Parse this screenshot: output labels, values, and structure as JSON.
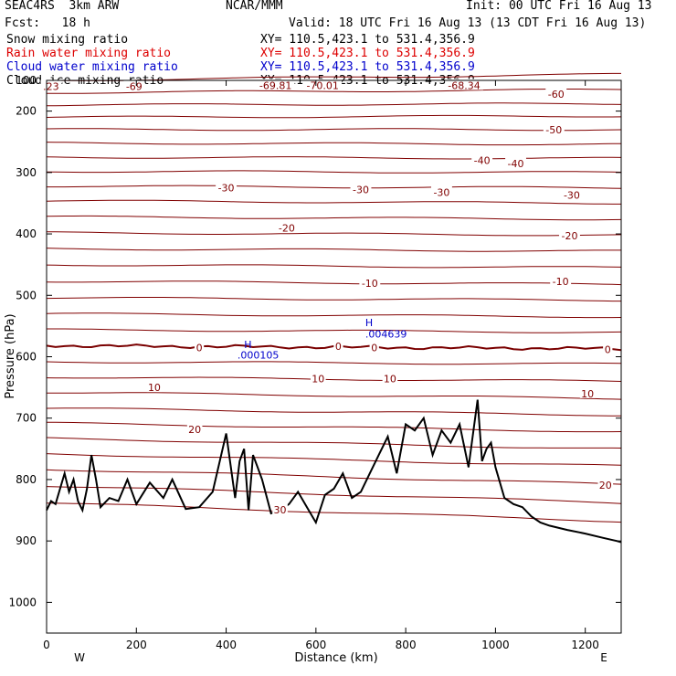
{
  "header": {
    "model": "SEAC4RS  3km ARW",
    "center": "NCAR/MMM",
    "init": "Init: 00 UTC Fri 16 Aug 13",
    "fcst": "Fcst:   18 h",
    "valid": "Valid: 18 UTC Fri 16 Aug 13 (13 CDT Fri 16 Aug 13)",
    "fields": [
      {
        "name": "Snow mixing ratio",
        "xy": "XY= 110.5,423.1 to 531.4,356.9",
        "color": "#000000"
      },
      {
        "name": "Rain water mixing ratio",
        "xy": "XY= 110.5,423.1 to 531.4,356.9",
        "color": "#dd0000"
      },
      {
        "name": "Cloud water mixing ratio",
        "xy": "XY= 110.5,423.1 to 531.4,356.9",
        "color": "#0000cc"
      },
      {
        "name": "Cloud ice mixing ratio",
        "xy": "XY= 110.5,423.1 to 531.4,356.9",
        "color": "#000000"
      }
    ]
  },
  "chart_data": {
    "type": "line",
    "xlabel": "Distance (km)",
    "ylabel": "Pressure (hPa)",
    "xlim": [
      0,
      1280
    ],
    "ylim": [
      1050,
      150
    ],
    "xticks": [
      0,
      200,
      400,
      600,
      800,
      1000,
      1200
    ],
    "yticks": [
      200,
      300,
      400,
      500,
      600,
      700,
      800,
      900,
      1000
    ],
    "y_tick_labels": [
      "200",
      "300",
      "400",
      "500",
      "600",
      "700",
      "800",
      "900",
      "1000"
    ],
    "top_y_label": "100",
    "x_end_labels": {
      "left": "W",
      "right": "E"
    },
    "colors": {
      "isotherm": "#800000",
      "freezing": "#7a0000",
      "terrain": "#000000",
      "cloud": "#0000cc"
    },
    "isotherm_labels": [
      {
        "text": ".23",
        "x": 10,
        "p": 160
      },
      {
        "text": "-69",
        "x": 195,
        "p": 160
      },
      {
        "text": "-69.81",
        "x": 510,
        "p": 158
      },
      {
        "text": "-70.01",
        "x": 615,
        "p": 158
      },
      {
        "text": "-68.34",
        "x": 930,
        "p": 158
      },
      {
        "text": "-60",
        "x": 1135,
        "p": 172
      },
      {
        "text": "-50",
        "x": 1130,
        "p": 230
      },
      {
        "text": "-40",
        "x": 970,
        "p": 280
      },
      {
        "text": "-40",
        "x": 1045,
        "p": 285
      },
      {
        "text": "-30",
        "x": 400,
        "p": 325
      },
      {
        "text": "-30",
        "x": 700,
        "p": 328
      },
      {
        "text": "-30",
        "x": 880,
        "p": 332
      },
      {
        "text": "-30",
        "x": 1170,
        "p": 337
      },
      {
        "text": "-20",
        "x": 535,
        "p": 390
      },
      {
        "text": "-20",
        "x": 1165,
        "p": 403
      },
      {
        "text": "-10",
        "x": 720,
        "p": 480
      },
      {
        "text": "-10",
        "x": 1145,
        "p": 477
      },
      {
        "text": "0",
        "x": 340,
        "p": 585
      },
      {
        "text": "0",
        "x": 650,
        "p": 583
      },
      {
        "text": "0",
        "x": 730,
        "p": 585
      },
      {
        "text": "0",
        "x": 1250,
        "p": 588
      },
      {
        "text": "10",
        "x": 240,
        "p": 650
      },
      {
        "text": "10",
        "x": 605,
        "p": 636
      },
      {
        "text": "10",
        "x": 765,
        "p": 636
      },
      {
        "text": "10",
        "x": 1205,
        "p": 660
      },
      {
        "text": "20",
        "x": 330,
        "p": 718
      },
      {
        "text": "20",
        "x": 1245,
        "p": 809
      },
      {
        "text": "30",
        "x": 520,
        "p": 849
      }
    ],
    "cloud_labels": [
      {
        "text": "H",
        "x": 710,
        "p": 550
      },
      {
        "text": ".004639",
        "x": 710,
        "p": 569
      },
      {
        "text": "H",
        "x": 440,
        "p": 586
      },
      {
        "text": ".000105",
        "x": 425,
        "p": 603
      }
    ],
    "terrain": {
      "x": [
        0,
        10,
        20,
        40,
        50,
        60,
        70,
        80,
        90,
        100,
        110,
        120,
        140,
        160,
        180,
        200,
        230,
        260,
        280,
        310,
        340,
        370,
        400,
        420,
        430,
        440,
        450,
        460,
        470,
        480,
        500,
        520,
        540,
        560,
        580,
        600,
        620,
        640,
        660,
        680,
        700,
        720,
        740,
        760,
        780,
        800,
        820,
        840,
        860,
        880,
        900,
        920,
        940,
        960,
        970,
        980,
        990,
        1000,
        1020,
        1040,
        1060,
        1080,
        1100,
        1120,
        1160,
        1200,
        1240,
        1270,
        1280
      ],
      "p": [
        850,
        835,
        840,
        790,
        820,
        800,
        835,
        850,
        815,
        760,
        800,
        845,
        830,
        835,
        800,
        840,
        805,
        830,
        800,
        848,
        845,
        820,
        725,
        830,
        770,
        750,
        850,
        760,
        780,
        800,
        855,
        850,
        840,
        820,
        845,
        870,
        825,
        815,
        790,
        830,
        820,
        790,
        760,
        730,
        790,
        710,
        720,
        700,
        760,
        720,
        740,
        710,
        780,
        670,
        770,
        750,
        740,
        780,
        830,
        840,
        845,
        860,
        870,
        875,
        882,
        888,
        895,
        900,
        902
      ]
    },
    "isotherms": [
      {
        "x": [
          0,
          1280
        ],
        "p": [
          150,
          140
        ]
      },
      {
        "x": [
          0,
          1280
        ],
        "p": [
          170,
          165
        ]
      },
      {
        "x": [
          0,
          1280
        ],
        "p": [
          190,
          188
        ]
      },
      {
        "x": [
          0,
          1280
        ],
        "p": [
          210,
          208
        ]
      },
      {
        "x": [
          0,
          1280
        ],
        "p": [
          230,
          230
        ]
      },
      {
        "x": [
          0,
          1280
        ],
        "p": [
          252,
          254
        ]
      },
      {
        "x": [
          0,
          1280
        ],
        "p": [
          275,
          277
        ]
      },
      {
        "x": [
          0,
          1280
        ],
        "p": [
          298,
          300
        ]
      },
      {
        "x": [
          0,
          1280
        ],
        "p": [
          322,
          325
        ]
      },
      {
        "x": [
          0,
          1280
        ],
        "p": [
          346,
          350
        ]
      },
      {
        "x": [
          0,
          1280
        ],
        "p": [
          372,
          376
        ]
      },
      {
        "x": [
          0,
          1280
        ],
        "p": [
          398,
          402
        ]
      },
      {
        "x": [
          0,
          1280
        ],
        "p": [
          424,
          428
        ]
      },
      {
        "x": [
          0,
          1280
        ],
        "p": [
          450,
          455
        ]
      },
      {
        "x": [
          0,
          1280
        ],
        "p": [
          477,
          482
        ]
      },
      {
        "x": [
          0,
          1280
        ],
        "p": [
          504,
          508
        ]
      },
      {
        "x": [
          0,
          1280
        ],
        "p": [
          530,
          535
        ]
      },
      {
        "x": [
          0,
          1280
        ],
        "p": [
          556,
          560
        ]
      },
      {
        "x": [
          0,
          1280
        ],
        "p": [
          582,
          587
        ],
        "freezing": true
      },
      {
        "x": [
          0,
          1280
        ],
        "p": [
          608,
          612
        ]
      },
      {
        "x": [
          0,
          1280
        ],
        "p": [
          633,
          640
        ]
      },
      {
        "x": [
          0,
          1280
        ],
        "p": [
          658,
          668
        ]
      },
      {
        "x": [
          0,
          1280
        ],
        "p": [
          684,
          695
        ]
      },
      {
        "x": [
          0,
          1280
        ],
        "p": [
          708,
          722
        ]
      },
      {
        "x": [
          0,
          1280
        ],
        "p": [
          733,
          750
        ]
      },
      {
        "x": [
          0,
          1280
        ],
        "p": [
          758,
          778
        ]
      },
      {
        "x": [
          0,
          1280
        ],
        "p": [
          783,
          808
        ]
      },
      {
        "x": [
          0,
          1280
        ],
        "p": [
          810,
          838
        ]
      },
      {
        "x": [
          0,
          1280
        ],
        "p": [
          838,
          868
        ]
      }
    ]
  }
}
